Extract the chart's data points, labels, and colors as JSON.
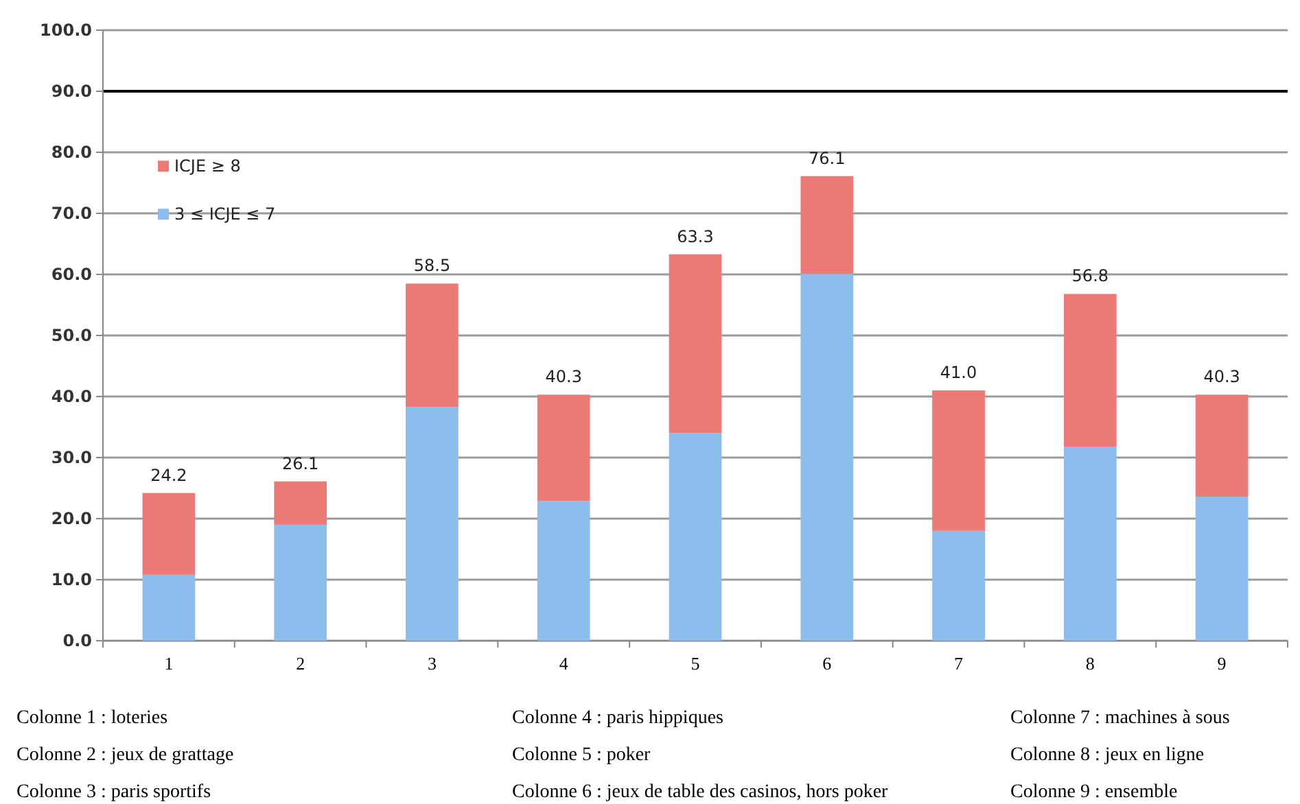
{
  "chart_data": {
    "type": "bar",
    "stacked": true,
    "categories": [
      "1",
      "2",
      "3",
      "4",
      "5",
      "6",
      "7",
      "8",
      "9"
    ],
    "series": [
      {
        "name": "3 ≤ ICJE ≤ 7",
        "color": "#8dbcef",
        "values": [
          10.8,
          19.0,
          38.3,
          22.9,
          34.0,
          60.1,
          18.0,
          31.8,
          23.6
        ]
      },
      {
        "name": "ICJE ≥ 8",
        "color": "#ec7b78",
        "values": [
          13.4,
          7.1,
          20.2,
          17.4,
          29.3,
          16.0,
          23.0,
          25.0,
          16.7
        ]
      }
    ],
    "totals": [
      "24.2",
      "26.1",
      "58.5",
      "40.3",
      "63.3",
      "76.1",
      "41.0",
      "56.8",
      "40.3"
    ],
    "ylim": [
      0,
      100
    ],
    "yticks": [
      {
        "value": 0,
        "label": "0.0"
      },
      {
        "value": 10,
        "label": "10.0"
      },
      {
        "value": 20,
        "label": "20.0"
      },
      {
        "value": 30,
        "label": "30.0"
      },
      {
        "value": 40,
        "label": "40.0"
      },
      {
        "value": 50,
        "label": "50.0"
      },
      {
        "value": 60,
        "label": "60.0"
      },
      {
        "value": 70,
        "label": "70.0"
      },
      {
        "value": 80,
        "label": "80.0"
      },
      {
        "value": 90,
        "label": "90.0"
      },
      {
        "value": 100,
        "label": "100.0"
      }
    ],
    "grid": "y",
    "legend": "top left",
    "ref_lines": [
      {
        "axis": "y",
        "value": 90,
        "color": "#000000"
      }
    ],
    "annotations": [
      "Colonne 1 : loteries",
      "Colonne 4 : paris hippiques",
      "Colonne 7 : machines à sous",
      "Colonne 2 : jeux de grattage",
      "Colonne 5 : poker",
      "Colonne 8 : jeux en ligne",
      "Colonne 3 : paris sportifs",
      "Colonne 6 : jeux de table des casinos, hors poker",
      "Colonne 9 : ensemble"
    ]
  }
}
